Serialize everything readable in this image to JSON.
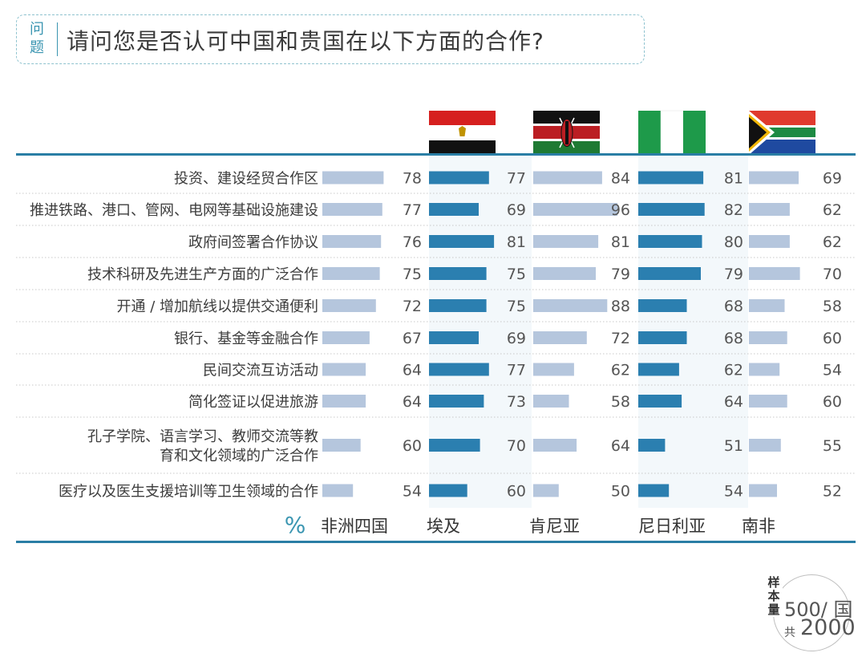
{
  "question": {
    "tag": "问题",
    "text": "请问您是否认可中国和贵国在以下方面的合作?"
  },
  "chart_data": {
    "type": "bar",
    "unit_label": "%",
    "categories": [
      "投资、建设经贸合作区",
      "推进铁路、港口、管网、电网等基础设施建设",
      "政府间签署合作协议",
      "技术科研及先进生产方面的广泛合作",
      "开通 / 增加航线以提供交通便利",
      "银行、基金等金融合作",
      "民间交流互访活动",
      "简化签证以促进旅游",
      "孔子学院、语言学习、教师交流等教育和文化领域的广泛合作",
      "医疗以及医生支援培训等卫生领域的合作"
    ],
    "series": [
      {
        "name": "非洲四国",
        "values": [
          78,
          77,
          76,
          75,
          72,
          67,
          64,
          64,
          60,
          54
        ]
      },
      {
        "name": "埃及",
        "values": [
          77,
          69,
          81,
          75,
          75,
          69,
          77,
          73,
          70,
          60
        ]
      },
      {
        "name": "肯尼亚",
        "values": [
          84,
          96,
          81,
          79,
          88,
          72,
          62,
          58,
          64,
          50
        ]
      },
      {
        "name": "尼日利亚",
        "values": [
          81,
          82,
          80,
          79,
          68,
          68,
          62,
          64,
          51,
          54
        ]
      },
      {
        "name": "南非",
        "values": [
          69,
          62,
          62,
          70,
          58,
          60,
          54,
          60,
          55,
          52
        ]
      }
    ],
    "colors": {
      "light": "#b5c6dd",
      "dark": "#2b7fb0",
      "rule": "#2a7ea5",
      "dots": "#c9c9c9"
    }
  },
  "sample": {
    "label": "样本量",
    "line1": "500/ 国",
    "line2_prefix": "共",
    "line2": "2000"
  }
}
